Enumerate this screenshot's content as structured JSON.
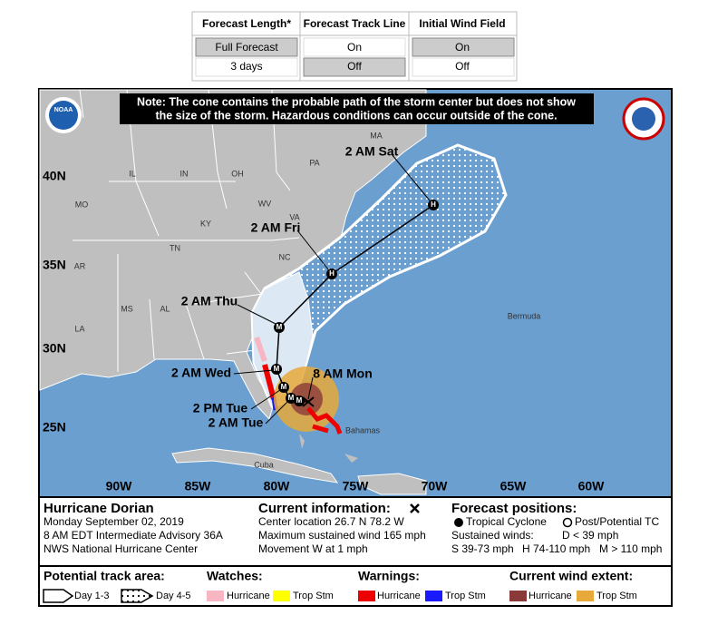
{
  "controls": {
    "headers": [
      "Forecast Length*",
      "Forecast Track Line",
      "Initial Wind Field"
    ],
    "rows": [
      [
        "Full Forecast",
        "On",
        "On"
      ],
      [
        "3 days",
        "Off",
        "Off"
      ]
    ]
  },
  "map": {
    "note": [
      "Note: The cone contains the probable path of the storm center but does not show",
      "the size of the storm. Hazardous conditions can occur outside of the cone."
    ],
    "logo": "NOAA",
    "latitudes": [
      "40N",
      "35N",
      "30N",
      "25N"
    ],
    "longitudes": [
      "90W",
      "85W",
      "80W",
      "75W",
      "70W",
      "65W",
      "60W"
    ],
    "places": [
      "MA",
      "PA",
      "IL",
      "IN",
      "OH",
      "MO",
      "WV",
      "KY",
      "VA",
      "TN",
      "NC",
      "AR",
      "MS",
      "AL",
      "LA",
      "Bermuda",
      "Bahamas",
      "Cuba"
    ],
    "times": [
      "2 AM Sat",
      "2 AM Fri",
      "2 AM Thu",
      "2 AM Wed",
      "8 AM Mon",
      "2 PM Tue",
      "2 AM Tue"
    ],
    "markers": [
      "H",
      "H",
      "M",
      "M",
      "M",
      "M",
      "M"
    ]
  },
  "info": {
    "storm": [
      "Hurricane Dorian",
      "Monday September 02, 2019",
      "8 AM EDT Intermediate Advisory 36A",
      "NWS National Hurricane Center"
    ],
    "current": [
      "Current information:",
      "Center location 26.7 N 78.2 W",
      "Maximum sustained wind 165 mph",
      "Movement W at 1 mph"
    ],
    "forecast": [
      "Forecast positions:",
      "Tropical Cyclone",
      "Post/Potential TC",
      "Sustained winds:",
      "D < 39 mph",
      "S 39-73 mph",
      "H 74-110 mph",
      "M > 110 mph"
    ]
  },
  "legend": {
    "track": [
      "Potential track area:",
      "Day 1-3",
      "Day 4-5"
    ],
    "watches": [
      "Watches:",
      "Hurricane",
      "Trop Stm"
    ],
    "warnings": [
      "Warnings:",
      "Hurricane",
      "Trop Stm"
    ],
    "wind": [
      "Current wind extent:",
      "Hurricane",
      "Trop Stm"
    ]
  }
}
